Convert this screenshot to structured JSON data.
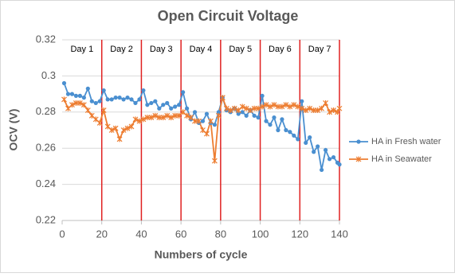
{
  "chart_data": {
    "type": "line",
    "title": "Open Circuit Voltage",
    "x_label": "Numbers of cycle",
    "y_label": "OCV (V)",
    "x": [
      1,
      3,
      5,
      7,
      9,
      11,
      13,
      15,
      17,
      19,
      21,
      23,
      25,
      27,
      29,
      31,
      33,
      35,
      37,
      39,
      41,
      43,
      45,
      47,
      49,
      51,
      53,
      55,
      57,
      59,
      61,
      63,
      65,
      67,
      69,
      71,
      73,
      75,
      77,
      79,
      81,
      83,
      85,
      87,
      89,
      91,
      93,
      95,
      97,
      99,
      101,
      103,
      105,
      107,
      109,
      111,
      113,
      115,
      117,
      119,
      121,
      123,
      125,
      127,
      129,
      131,
      133,
      135,
      137,
      139,
      140
    ],
    "series": [
      {
        "name": "HA in Fresh water",
        "color": "#4a8fd0",
        "marker": "circle",
        "values": [
          0.296,
          0.29,
          0.29,
          0.289,
          0.289,
          0.288,
          0.293,
          0.286,
          0.285,
          0.286,
          0.292,
          0.287,
          0.287,
          0.288,
          0.288,
          0.287,
          0.288,
          0.287,
          0.285,
          0.287,
          0.292,
          0.284,
          0.285,
          0.286,
          0.282,
          0.284,
          0.285,
          0.282,
          0.283,
          0.284,
          0.291,
          0.282,
          0.276,
          0.28,
          0.274,
          0.275,
          0.279,
          0.274,
          0.273,
          0.28,
          0.288,
          0.281,
          0.28,
          0.282,
          0.279,
          0.28,
          0.278,
          0.281,
          0.278,
          0.277,
          0.289,
          0.275,
          0.273,
          0.277,
          0.27,
          0.276,
          0.27,
          0.269,
          0.267,
          0.265,
          0.286,
          0.263,
          0.266,
          0.258,
          0.261,
          0.248,
          0.259,
          0.254,
          0.255,
          0.252,
          0.251
        ]
      },
      {
        "name": "HA in Seawater",
        "color": "#ed7d31",
        "marker": "star",
        "values": [
          0.287,
          0.282,
          0.284,
          0.285,
          0.285,
          0.284,
          0.281,
          0.278,
          0.276,
          0.274,
          0.281,
          0.272,
          0.27,
          0.271,
          0.265,
          0.27,
          0.271,
          0.272,
          0.276,
          0.275,
          0.276,
          0.277,
          0.277,
          0.278,
          0.277,
          0.277,
          0.278,
          0.277,
          0.278,
          0.278,
          0.28,
          0.278,
          0.277,
          0.275,
          0.275,
          0.27,
          0.268,
          0.275,
          0.253,
          0.278,
          0.288,
          0.282,
          0.281,
          0.282,
          0.281,
          0.283,
          0.282,
          0.281,
          0.282,
          0.282,
          0.283,
          0.284,
          0.283,
          0.284,
          0.283,
          0.283,
          0.284,
          0.283,
          0.284,
          0.283,
          0.282,
          0.281,
          0.282,
          0.281,
          0.281,
          0.282,
          0.285,
          0.28,
          0.281,
          0.28,
          0.282
        ]
      }
    ],
    "xlim": [
      0,
      140
    ],
    "xticks": [
      0,
      20,
      40,
      60,
      80,
      100,
      120,
      140
    ],
    "ylim": [
      0.22,
      0.32
    ],
    "yticks": [
      0.22,
      0.24,
      0.26,
      0.28,
      0.3,
      0.32
    ],
    "grid": true,
    "vlines": [
      20,
      40,
      60,
      80,
      100,
      120,
      140
    ],
    "vline_color": "#e02020",
    "day_labels": [
      "Day 1",
      "Day 2",
      "Day 3",
      "Day 4",
      "Day 5",
      "Day 6",
      "Day 7"
    ],
    "legend": "right"
  }
}
